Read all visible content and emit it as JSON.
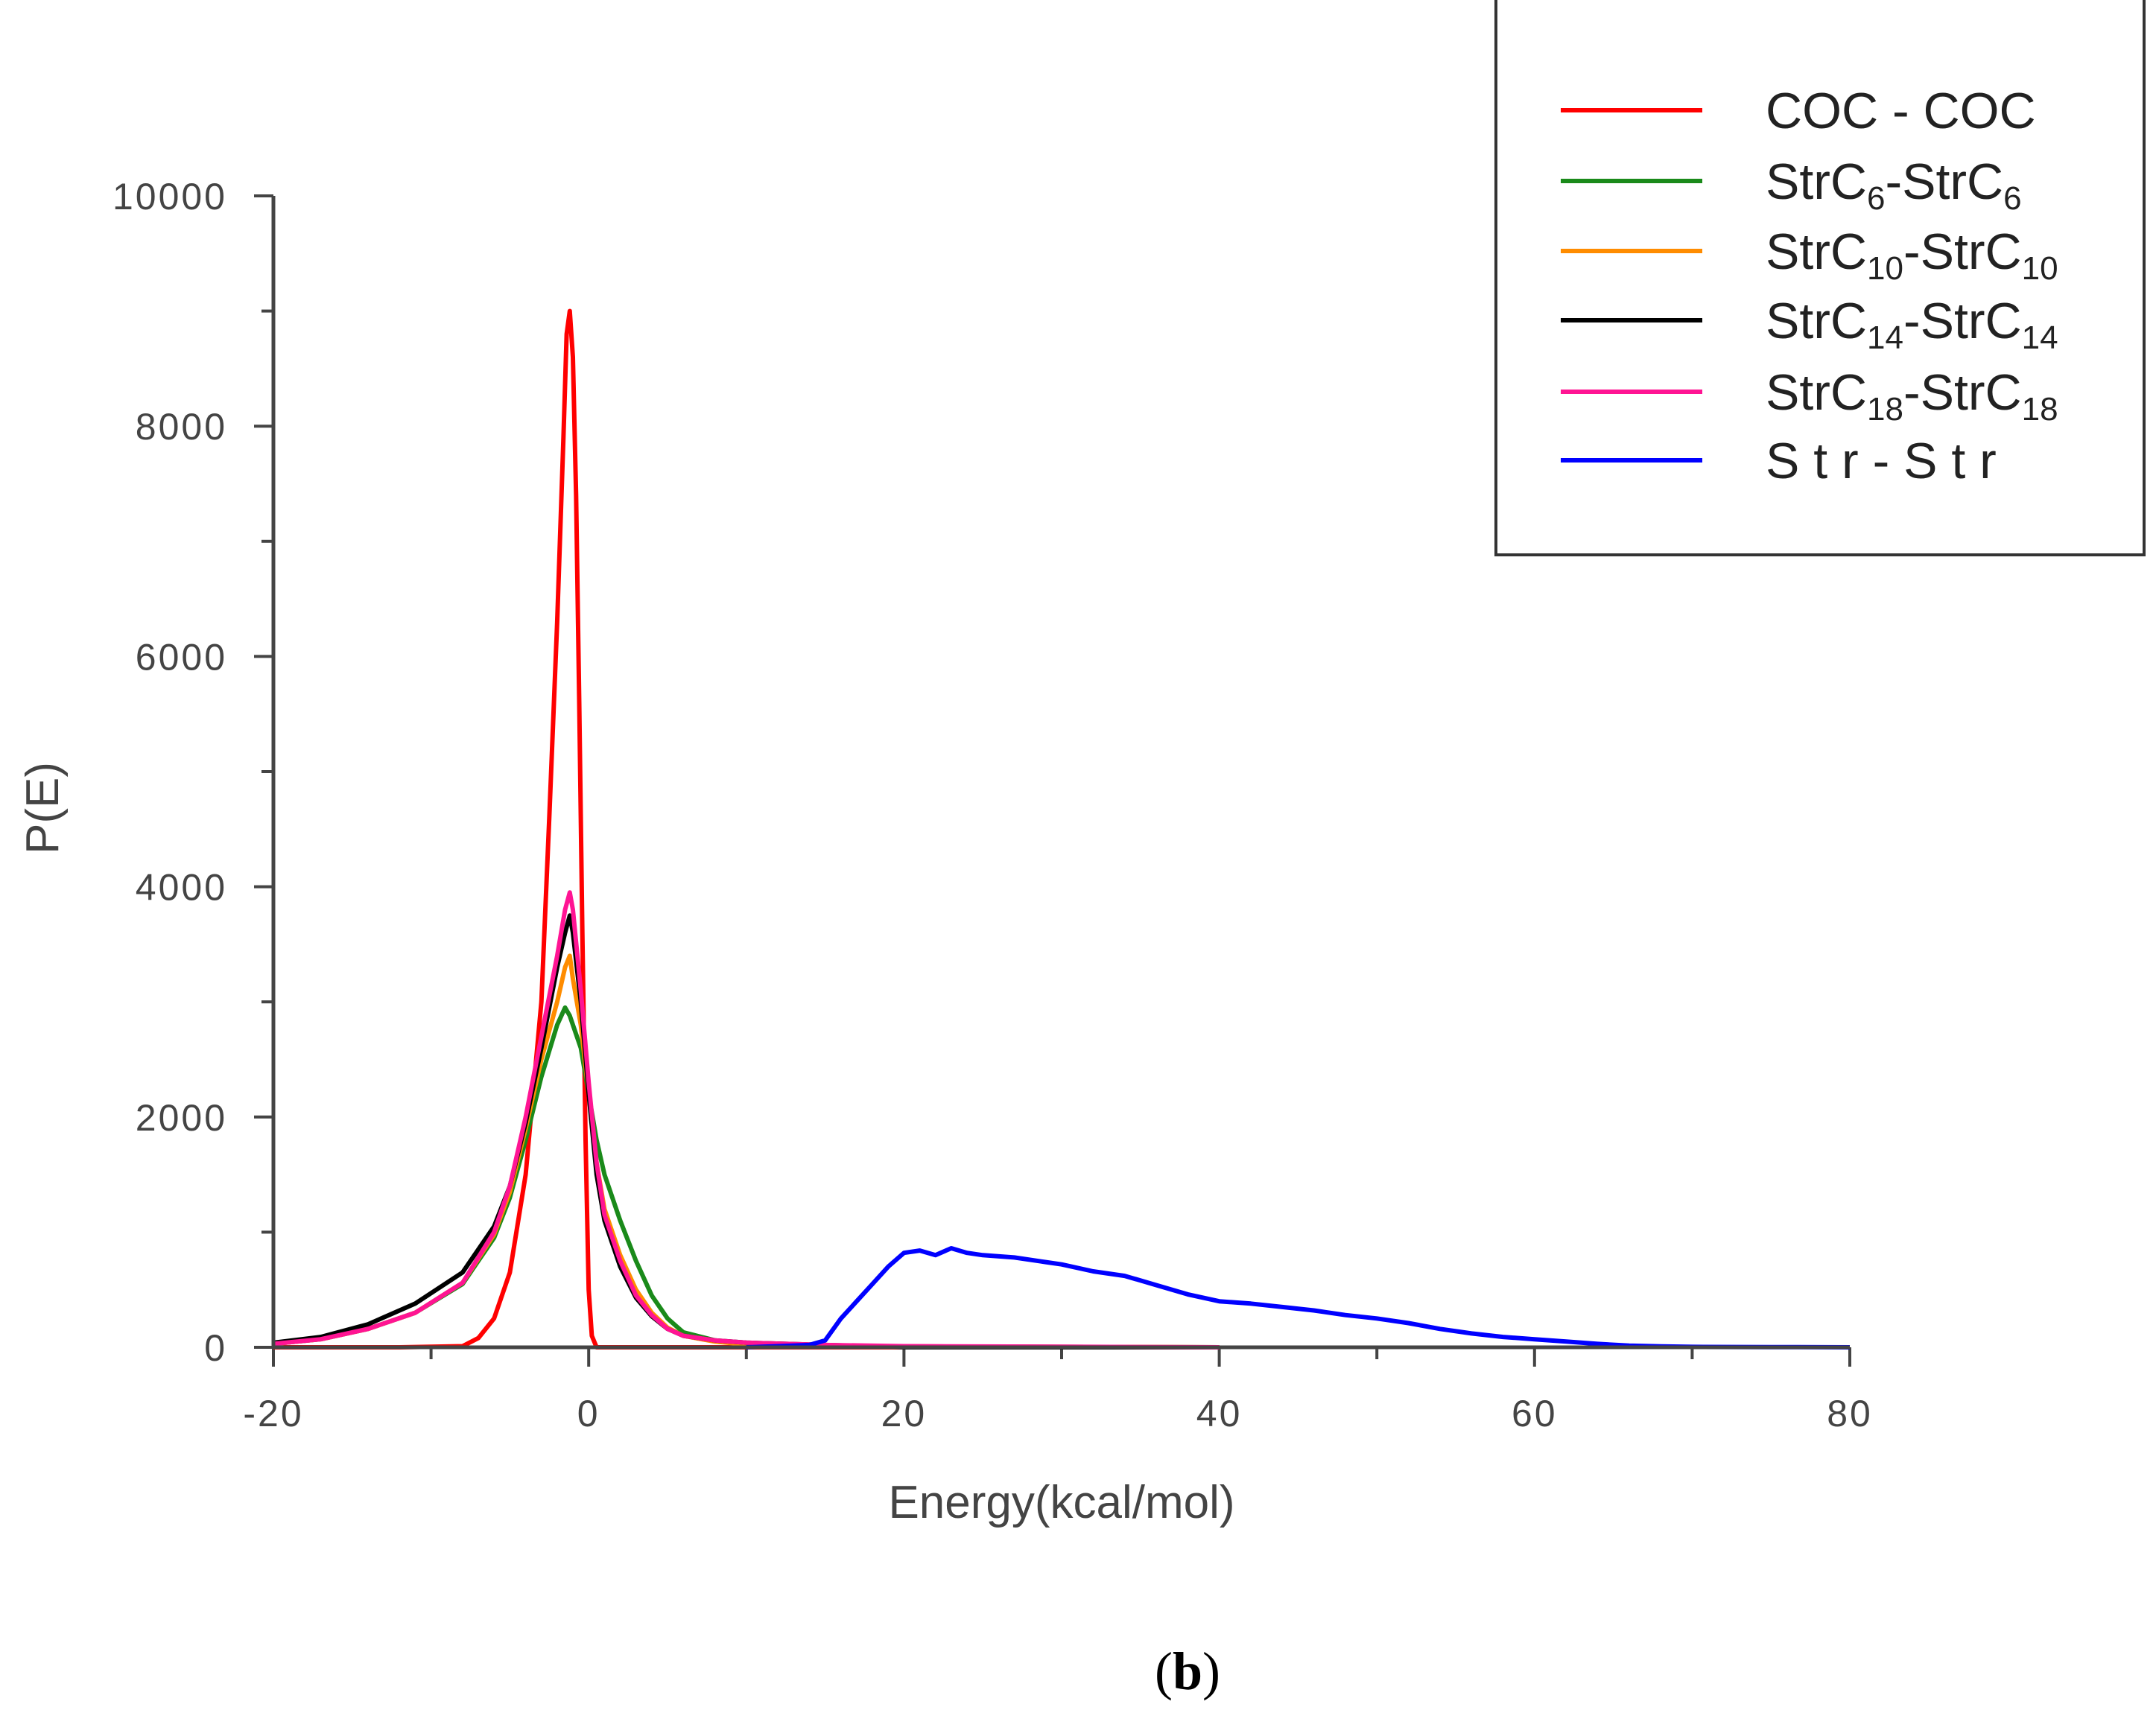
{
  "chart_data": {
    "type": "line",
    "title": "",
    "xlabel": "Energy(kcal/mol)",
    "ylabel": "P(E)",
    "xlim": [
      -20,
      80
    ],
    "ylim": [
      0,
      10000
    ],
    "x_ticks": [
      "-20",
      "0",
      "20",
      "40",
      "60",
      "80"
    ],
    "y_ticks": [
      "0",
      "2000",
      "4000",
      "6000",
      "8000",
      "10000"
    ],
    "panel_label": {
      "open": "(",
      "letter": "b",
      "close": ")"
    },
    "legend_position": "top-right",
    "series": [
      {
        "name": "COC - COC",
        "label_base": "COC - COC",
        "label_sub": "",
        "label_mid": "",
        "label_sub2": "",
        "color": "#ff0000",
        "points": [
          [
            -20,
            0
          ],
          [
            -12,
            0
          ],
          [
            -8,
            10
          ],
          [
            -7,
            80
          ],
          [
            -6,
            250
          ],
          [
            -5,
            650
          ],
          [
            -4,
            1500
          ],
          [
            -3,
            3000
          ],
          [
            -2.5,
            4600
          ],
          [
            -2,
            6300
          ],
          [
            -1.6,
            7900
          ],
          [
            -1.4,
            8800
          ],
          [
            -1.2,
            9000
          ],
          [
            -1,
            8600
          ],
          [
            -0.8,
            7400
          ],
          [
            -0.6,
            5600
          ],
          [
            -0.4,
            3600
          ],
          [
            -0.2,
            1800
          ],
          [
            0,
            500
          ],
          [
            0.2,
            100
          ],
          [
            0.5,
            0
          ],
          [
            40,
            0
          ]
        ]
      },
      {
        "name": "StrC6-StrC6",
        "label_base": "StrC",
        "label_sub": "6",
        "label_mid": "-StrC",
        "label_sub2": "6",
        "color": "#1a8a1a",
        "points": [
          [
            -20,
            30
          ],
          [
            -17,
            70
          ],
          [
            -14,
            160
          ],
          [
            -11,
            300
          ],
          [
            -8,
            550
          ],
          [
            -6,
            950
          ],
          [
            -5,
            1300
          ],
          [
            -4,
            1800
          ],
          [
            -3,
            2350
          ],
          [
            -2,
            2800
          ],
          [
            -1.5,
            2950
          ],
          [
            -1.2,
            2880
          ],
          [
            -1,
            2800
          ],
          [
            -0.5,
            2600
          ],
          [
            0,
            2200
          ],
          [
            0.5,
            1800
          ],
          [
            1,
            1500
          ],
          [
            2,
            1100
          ],
          [
            3,
            750
          ],
          [
            4,
            450
          ],
          [
            5,
            250
          ],
          [
            6,
            130
          ],
          [
            8,
            60
          ],
          [
            10,
            30
          ],
          [
            15,
            10
          ],
          [
            40,
            0
          ]
        ]
      },
      {
        "name": "StrC10-StrC10",
        "label_base": "StrC",
        "label_sub": "10",
        "label_mid": "-StrC",
        "label_sub2": "10",
        "color": "#ff8c00",
        "points": [
          [
            -20,
            30
          ],
          [
            -17,
            70
          ],
          [
            -14,
            160
          ],
          [
            -11,
            300
          ],
          [
            -8,
            560
          ],
          [
            -6,
            980
          ],
          [
            -5,
            1350
          ],
          [
            -4,
            1900
          ],
          [
            -3,
            2500
          ],
          [
            -2,
            3000
          ],
          [
            -1.5,
            3300
          ],
          [
            -1.2,
            3400
          ],
          [
            -1,
            3200
          ],
          [
            -0.5,
            2800
          ],
          [
            0,
            2200
          ],
          [
            0.5,
            1600
          ],
          [
            1,
            1200
          ],
          [
            2,
            800
          ],
          [
            3,
            500
          ],
          [
            4,
            300
          ],
          [
            5,
            170
          ],
          [
            6,
            100
          ],
          [
            8,
            50
          ],
          [
            10,
            25
          ],
          [
            15,
            10
          ],
          [
            40,
            0
          ]
        ]
      },
      {
        "name": "StrC14-StrC14",
        "label_base": "StrC",
        "label_sub": "14",
        "label_mid": "-StrC",
        "label_sub2": "14",
        "color": "#000000",
        "points": [
          [
            -20,
            40
          ],
          [
            -17,
            90
          ],
          [
            -14,
            200
          ],
          [
            -11,
            380
          ],
          [
            -8,
            650
          ],
          [
            -6,
            1050
          ],
          [
            -5,
            1400
          ],
          [
            -4,
            1950
          ],
          [
            -3,
            2600
          ],
          [
            -2,
            3300
          ],
          [
            -1.5,
            3600
          ],
          [
            -1.2,
            3750
          ],
          [
            -1,
            3600
          ],
          [
            -0.5,
            3000
          ],
          [
            0,
            2200
          ],
          [
            0.5,
            1500
          ],
          [
            1,
            1100
          ],
          [
            2,
            700
          ],
          [
            3,
            430
          ],
          [
            4,
            270
          ],
          [
            5,
            160
          ],
          [
            6,
            100
          ],
          [
            8,
            60
          ],
          [
            10,
            40
          ],
          [
            15,
            20
          ],
          [
            18,
            10
          ],
          [
            20,
            0
          ],
          [
            40,
            0
          ]
        ]
      },
      {
        "name": "StrC18-StrC18",
        "label_base": "StrC",
        "label_sub": "18",
        "label_mid": "-StrC",
        "label_sub2": "18",
        "color": "#ff1493",
        "points": [
          [
            -20,
            30
          ],
          [
            -17,
            70
          ],
          [
            -14,
            160
          ],
          [
            -11,
            300
          ],
          [
            -8,
            560
          ],
          [
            -6,
            1000
          ],
          [
            -5,
            1400
          ],
          [
            -4,
            2000
          ],
          [
            -3,
            2700
          ],
          [
            -2,
            3400
          ],
          [
            -1.5,
            3800
          ],
          [
            -1.2,
            3950
          ],
          [
            -1,
            3800
          ],
          [
            -0.5,
            3100
          ],
          [
            0,
            2300
          ],
          [
            0.5,
            1600
          ],
          [
            1,
            1150
          ],
          [
            2,
            750
          ],
          [
            3,
            450
          ],
          [
            4,
            280
          ],
          [
            5,
            160
          ],
          [
            6,
            100
          ],
          [
            8,
            60
          ],
          [
            10,
            40
          ],
          [
            15,
            20
          ],
          [
            20,
            10
          ],
          [
            40,
            0
          ]
        ]
      },
      {
        "name": "Str - Str",
        "label_base": "S t r - S t r",
        "label_sub": "",
        "label_mid": "",
        "label_sub2": "",
        "color": "#0000ff",
        "points": [
          [
            10,
            0
          ],
          [
            12,
            10
          ],
          [
            14,
            20
          ],
          [
            15,
            60
          ],
          [
            16,
            250
          ],
          [
            17,
            400
          ],
          [
            18,
            550
          ],
          [
            19,
            700
          ],
          [
            20,
            820
          ],
          [
            21,
            840
          ],
          [
            22,
            800
          ],
          [
            23,
            860
          ],
          [
            24,
            820
          ],
          [
            25,
            800
          ],
          [
            27,
            780
          ],
          [
            29,
            740
          ],
          [
            30,
            720
          ],
          [
            32,
            660
          ],
          [
            34,
            620
          ],
          [
            36,
            540
          ],
          [
            38,
            460
          ],
          [
            40,
            400
          ],
          [
            42,
            380
          ],
          [
            44,
            350
          ],
          [
            46,
            320
          ],
          [
            48,
            280
          ],
          [
            50,
            250
          ],
          [
            52,
            210
          ],
          [
            54,
            160
          ],
          [
            56,
            120
          ],
          [
            58,
            90
          ],
          [
            60,
            70
          ],
          [
            62,
            50
          ],
          [
            64,
            30
          ],
          [
            66,
            15
          ],
          [
            68,
            8
          ],
          [
            70,
            4
          ],
          [
            75,
            2
          ],
          [
            80,
            0
          ]
        ]
      }
    ]
  }
}
